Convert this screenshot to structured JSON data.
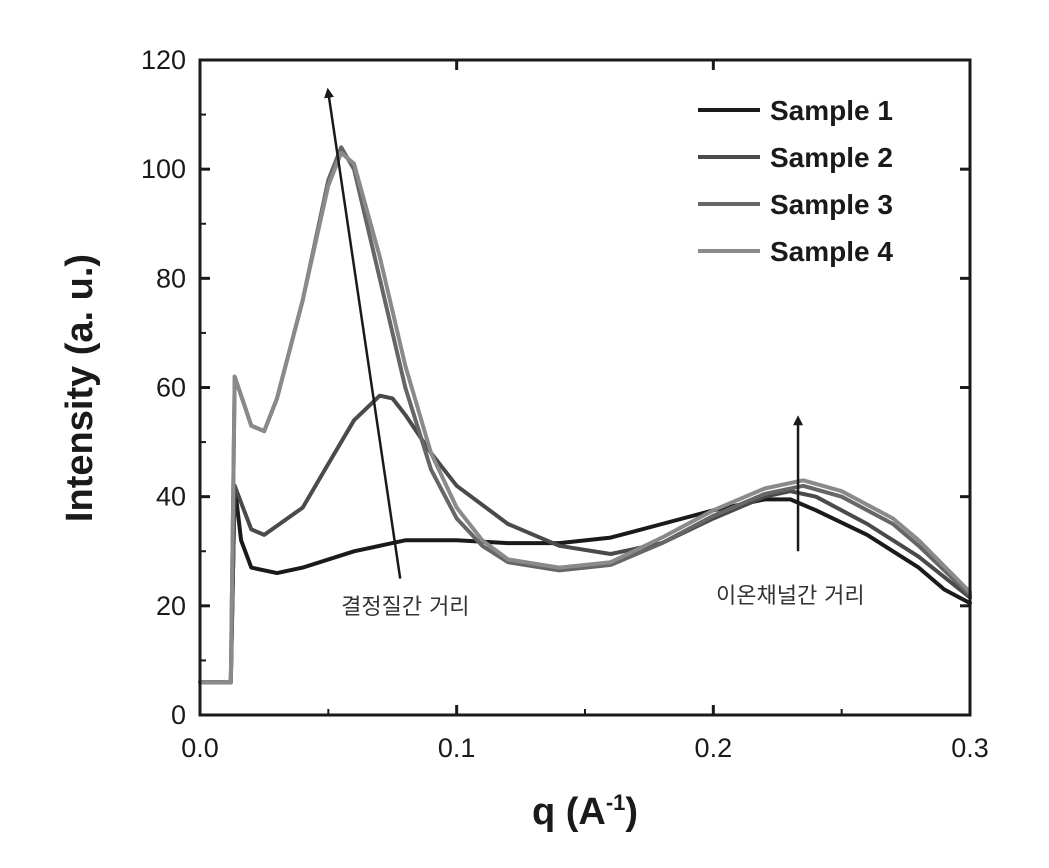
{
  "chart_data": {
    "type": "line",
    "title": "",
    "xlabel": "q (A",
    "xlabel_sup": "-1",
    "xlabel_close": ")",
    "ylabel": "Intensity (a. u.)",
    "xlim": [
      0.0,
      0.3
    ],
    "ylim": [
      0,
      120
    ],
    "xticks": [
      "0.0",
      "0.1",
      "0.2",
      "0.3"
    ],
    "yticks": [
      "0",
      "20",
      "40",
      "60",
      "80",
      "100",
      "120"
    ],
    "grid": false,
    "legend_position": "top-right",
    "series": [
      {
        "name": "Sample 1",
        "color": "#1a1a1a",
        "points": [
          [
            0.0,
            6
          ],
          [
            0.012,
            6
          ],
          [
            0.0135,
            42
          ],
          [
            0.016,
            32
          ],
          [
            0.02,
            27
          ],
          [
            0.03,
            26
          ],
          [
            0.04,
            27
          ],
          [
            0.06,
            30
          ],
          [
            0.08,
            32
          ],
          [
            0.1,
            32
          ],
          [
            0.12,
            31.5
          ],
          [
            0.14,
            31.5
          ],
          [
            0.16,
            32.5
          ],
          [
            0.18,
            35
          ],
          [
            0.2,
            37.5
          ],
          [
            0.22,
            39.5
          ],
          [
            0.23,
            39.5
          ],
          [
            0.24,
            37.5
          ],
          [
            0.26,
            33
          ],
          [
            0.28,
            27
          ],
          [
            0.29,
            23
          ],
          [
            0.3,
            20.5
          ]
        ]
      },
      {
        "name": "Sample 2",
        "color": "#4a4a4a",
        "points": [
          [
            0.0,
            6
          ],
          [
            0.012,
            6
          ],
          [
            0.0135,
            42
          ],
          [
            0.02,
            34
          ],
          [
            0.025,
            33
          ],
          [
            0.04,
            38
          ],
          [
            0.05,
            46
          ],
          [
            0.06,
            54
          ],
          [
            0.07,
            58.5
          ],
          [
            0.075,
            58
          ],
          [
            0.08,
            55
          ],
          [
            0.09,
            48
          ],
          [
            0.1,
            42
          ],
          [
            0.12,
            35
          ],
          [
            0.14,
            31
          ],
          [
            0.16,
            29.5
          ],
          [
            0.18,
            31.5
          ],
          [
            0.2,
            36
          ],
          [
            0.22,
            40
          ],
          [
            0.23,
            41
          ],
          [
            0.24,
            40
          ],
          [
            0.26,
            35
          ],
          [
            0.28,
            29
          ],
          [
            0.3,
            21.5
          ]
        ]
      },
      {
        "name": "Sample 3",
        "color": "#666666",
        "points": [
          [
            0.0,
            6
          ],
          [
            0.012,
            6
          ],
          [
            0.0135,
            62
          ],
          [
            0.02,
            53
          ],
          [
            0.025,
            52
          ],
          [
            0.03,
            58
          ],
          [
            0.04,
            76
          ],
          [
            0.05,
            98
          ],
          [
            0.055,
            104
          ],
          [
            0.06,
            100
          ],
          [
            0.07,
            80
          ],
          [
            0.08,
            60
          ],
          [
            0.09,
            45
          ],
          [
            0.1,
            36
          ],
          [
            0.11,
            31
          ],
          [
            0.12,
            28
          ],
          [
            0.14,
            26.5
          ],
          [
            0.16,
            27.5
          ],
          [
            0.18,
            31.5
          ],
          [
            0.2,
            36.5
          ],
          [
            0.22,
            40.5
          ],
          [
            0.235,
            42
          ],
          [
            0.25,
            40
          ],
          [
            0.27,
            35
          ],
          [
            0.28,
            31
          ],
          [
            0.3,
            22
          ]
        ]
      },
      {
        "name": "Sample 4",
        "color": "#8a8a8a",
        "points": [
          [
            0.0,
            6
          ],
          [
            0.012,
            6
          ],
          [
            0.0135,
            62
          ],
          [
            0.02,
            53
          ],
          [
            0.025,
            52
          ],
          [
            0.03,
            58
          ],
          [
            0.04,
            76
          ],
          [
            0.05,
            97
          ],
          [
            0.055,
            103
          ],
          [
            0.06,
            101
          ],
          [
            0.07,
            84
          ],
          [
            0.08,
            64
          ],
          [
            0.09,
            48
          ],
          [
            0.1,
            38
          ],
          [
            0.11,
            32
          ],
          [
            0.12,
            28.5
          ],
          [
            0.14,
            27
          ],
          [
            0.16,
            28
          ],
          [
            0.18,
            32.5
          ],
          [
            0.2,
            37.5
          ],
          [
            0.22,
            41.5
          ],
          [
            0.235,
            43
          ],
          [
            0.25,
            41
          ],
          [
            0.27,
            36
          ],
          [
            0.28,
            32
          ],
          [
            0.3,
            22.5
          ]
        ]
      }
    ],
    "annotations": [
      {
        "text": "결정질간 거리",
        "x": 0.08,
        "y": 20
      },
      {
        "text": "이온채널간 거리",
        "x": 0.23,
        "y": 22
      }
    ],
    "arrows": [
      {
        "from": [
          0.078,
          25
        ],
        "to": [
          0.05,
          114
        ]
      },
      {
        "from": [
          0.233,
          30
        ],
        "to": [
          0.233,
          54
        ]
      }
    ]
  }
}
